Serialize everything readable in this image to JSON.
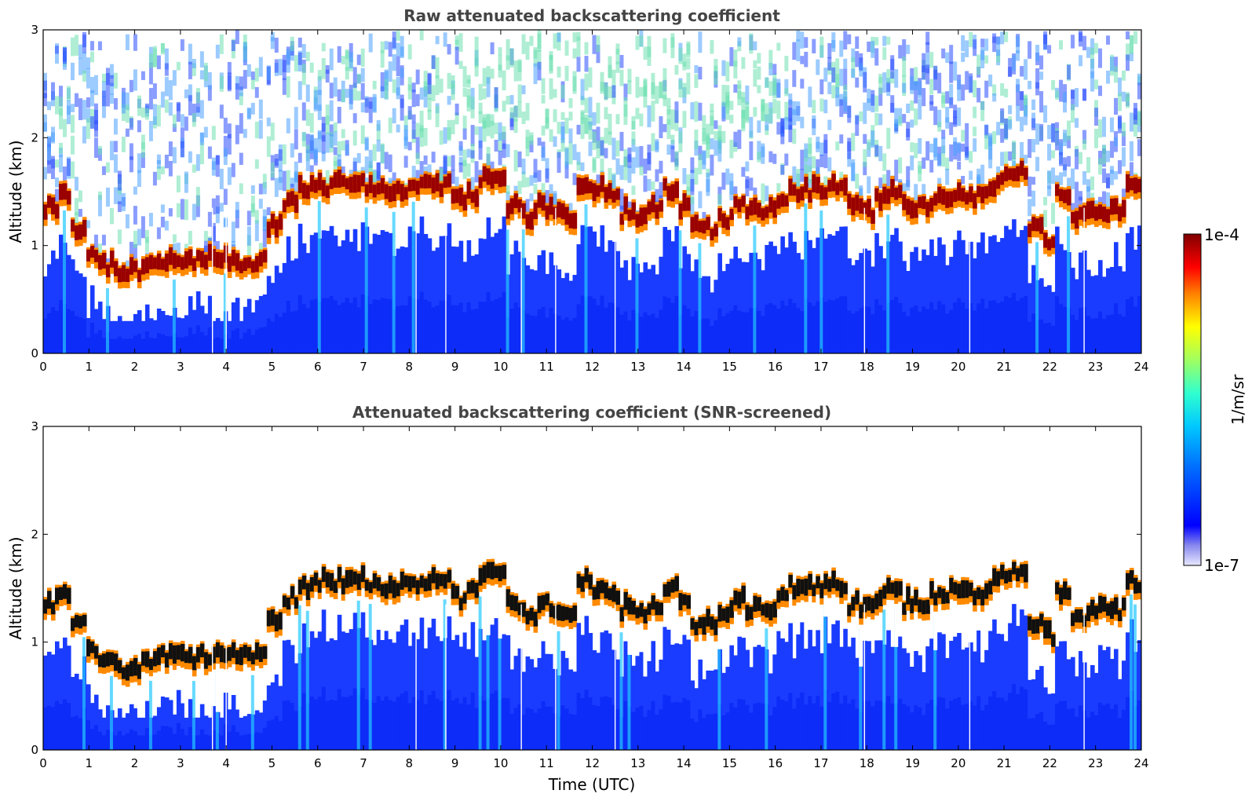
{
  "chart_data": [
    {
      "type": "heatmap",
      "title": "Raw attenuated backscattering coefficient",
      "xlabel": "",
      "ylabel": "Altitude (km)",
      "xlim": [
        0,
        24
      ],
      "ylim": [
        0,
        3
      ],
      "xticks": [
        "0",
        "1",
        "2",
        "3",
        "4",
        "5",
        "6",
        "7",
        "8",
        "9",
        "10",
        "11",
        "12",
        "13",
        "14",
        "15",
        "16",
        "17",
        "18",
        "19",
        "20",
        "21",
        "22",
        "23",
        "24"
      ],
      "yticks": [
        "0",
        "1",
        "2",
        "3"
      ],
      "x_interval_h": 0.1,
      "cloud_base_km": [
        1.3,
        1.4,
        1.1,
        0.9,
        0.75,
        0.7,
        0.7,
        0.75,
        0.8,
        0.8,
        0.8,
        0.8,
        0.8,
        0.8,
        0.8,
        0.8,
        1.1,
        1.35,
        1.45,
        1.5,
        1.5,
        1.5,
        1.5,
        1.45,
        1.45,
        1.45,
        1.5,
        1.5,
        1.5,
        1.35,
        1.4,
        1.55,
        1.55,
        1.3,
        1.2,
        1.3,
        1.25,
        1.2,
        1.5,
        1.45,
        1.4,
        1.25,
        1.2,
        1.3,
        1.45,
        1.3,
        1.1,
        1.1,
        1.2,
        1.3,
        1.25,
        1.25,
        1.35,
        1.45,
        1.45,
        1.45,
        1.45,
        1.3,
        1.25,
        1.35,
        1.4,
        1.3,
        1.3,
        1.35,
        1.4,
        1.4,
        1.4,
        1.5,
        1.6,
        1.6,
        1.1,
        1.0,
        1.4,
        1.2,
        1.25,
        1.25,
        1.25,
        1.5
      ],
      "has_cloud": [
        1,
        1,
        1,
        1,
        1,
        1,
        1,
        1,
        1,
        1,
        1,
        1,
        1,
        1,
        1,
        1,
        1,
        1,
        1,
        1,
        1,
        1,
        1,
        1,
        1,
        1,
        1,
        1,
        1,
        1,
        1,
        1,
        1,
        1,
        1,
        1,
        1,
        1,
        1,
        1,
        1,
        1,
        1,
        1,
        1,
        1,
        1,
        1,
        1,
        1,
        1,
        1,
        1,
        1,
        1,
        1,
        1,
        1,
        1,
        1,
        1,
        1,
        1,
        1,
        1,
        1,
        1,
        1,
        1,
        1,
        1,
        1,
        1,
        1,
        1,
        1,
        1,
        1
      ],
      "colorbar": {
        "min_label": "1e-7",
        "max_label": "1e-4",
        "unit": "1/m/sr"
      }
    },
    {
      "type": "heatmap",
      "title": "Attenuated backscattering coefficient (SNR-screened)",
      "xlabel": "Time (UTC)",
      "ylabel": "Altitude (km)",
      "xlim": [
        0,
        24
      ],
      "ylim": [
        0,
        3
      ],
      "xticks": [
        "0",
        "1",
        "2",
        "3",
        "4",
        "5",
        "6",
        "7",
        "8",
        "9",
        "10",
        "11",
        "12",
        "13",
        "14",
        "15",
        "16",
        "17",
        "18",
        "19",
        "20",
        "21",
        "22",
        "23",
        "24"
      ],
      "yticks": [
        "0",
        "1",
        "2",
        "3"
      ],
      "screened": true
    }
  ],
  "colorbar": {
    "min_label": "1e-7",
    "max_label": "1e-4",
    "unit": "1/m/sr"
  }
}
